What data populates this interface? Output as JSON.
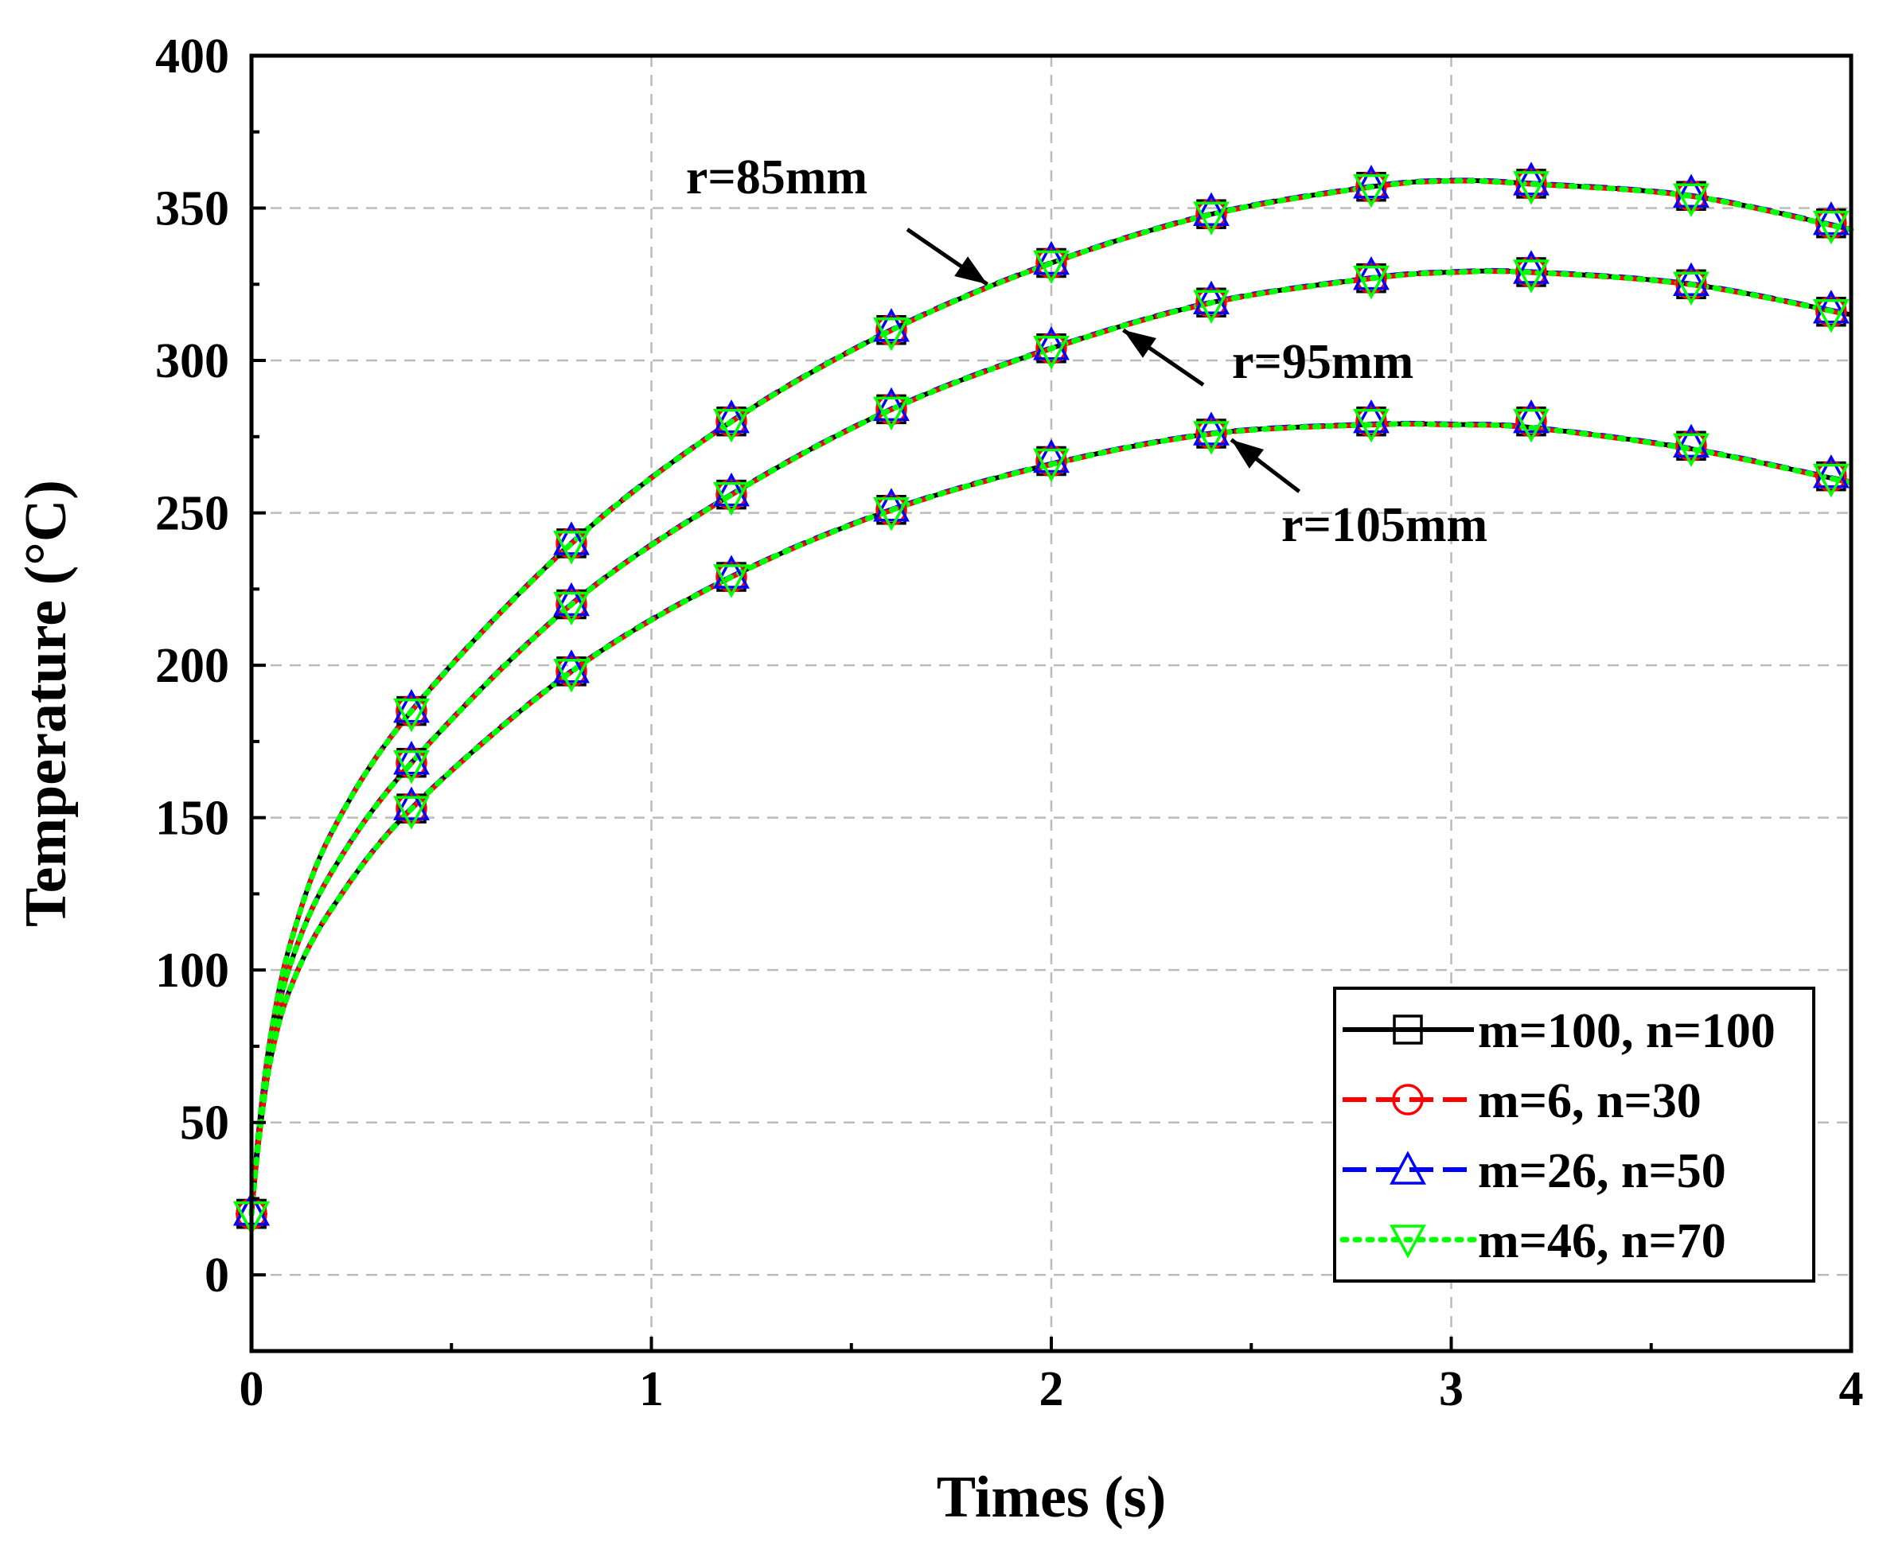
{
  "chart_data": {
    "type": "line",
    "title": "",
    "xlabel": "Times (s)",
    "ylabel": "Temperature (°C)",
    "xlim": [
      0,
      4
    ],
    "ylim": [
      -25,
      400
    ],
    "xticks": [
      "0",
      "1",
      "2",
      "3",
      "4"
    ],
    "yticks": [
      "0",
      "50",
      "100",
      "150",
      "200",
      "250",
      "300",
      "350",
      "400"
    ],
    "grid": true,
    "legend_position": "bottom-right",
    "colors": {
      "black": "#000000",
      "red": "#ff0000",
      "blue": "#0000ff",
      "green": "#00ff00",
      "grid": "#bbbbbb"
    },
    "legend": [
      {
        "label": "m=100, n=100",
        "color": "#000000",
        "dash": "solid",
        "marker": "square"
      },
      {
        "label": "m=6, n=30",
        "color": "#ff0000",
        "dash": "dash",
        "marker": "circle"
      },
      {
        "label": "m=26, n=50",
        "color": "#0000ff",
        "dash": "dash",
        "marker": "triangle-up"
      },
      {
        "label": "m=46, n=70",
        "color": "#00ff00",
        "dash": "dot",
        "marker": "triangle-down"
      }
    ],
    "curves": [
      {
        "name": "r=85mm",
        "x": [
          0,
          0.02,
          0.05,
          0.1,
          0.2,
          0.4,
          0.8,
          1.2,
          1.6,
          2.0,
          2.4,
          2.8,
          3.0,
          3.2,
          3.6,
          4.0
        ],
        "y": [
          20,
          50,
          80,
          110,
          145,
          185,
          240,
          280,
          310,
          332,
          348,
          357,
          359,
          358,
          354,
          343
        ],
        "marker_x": [
          0,
          0.4,
          0.8,
          1.2,
          1.6,
          2.0,
          2.4,
          2.8,
          3.2,
          3.6,
          3.95
        ],
        "marker_y": [
          20,
          185,
          240,
          280,
          310,
          332,
          348,
          357,
          358,
          354,
          345
        ]
      },
      {
        "name": "r=95mm",
        "x": [
          0,
          0.02,
          0.05,
          0.1,
          0.2,
          0.4,
          0.8,
          1.2,
          1.6,
          2.0,
          2.4,
          2.8,
          3.0,
          3.2,
          3.6,
          4.0
        ],
        "y": [
          20,
          48,
          76,
          103,
          132,
          168,
          220,
          256,
          284,
          304,
          319,
          327,
          329,
          329,
          325,
          315
        ],
        "marker_x": [
          0,
          0.4,
          0.8,
          1.2,
          1.6,
          2.0,
          2.4,
          2.8,
          3.2,
          3.6,
          3.95
        ],
        "marker_y": [
          20,
          168,
          220,
          256,
          284,
          304,
          319,
          327,
          329,
          325,
          316
        ]
      },
      {
        "name": "r=105mm",
        "x": [
          0,
          0.02,
          0.05,
          0.1,
          0.2,
          0.4,
          0.8,
          1.2,
          1.6,
          2.0,
          2.4,
          2.8,
          3.0,
          3.2,
          3.6,
          4.0
        ],
        "y": [
          20,
          46,
          72,
          95,
          120,
          153,
          198,
          229,
          251,
          266,
          276,
          279,
          279,
          278,
          271,
          260
        ],
        "marker_x": [
          0,
          0.4,
          0.8,
          1.2,
          1.6,
          2.0,
          2.4,
          2.8,
          3.2,
          3.6,
          3.95
        ],
        "marker_y": [
          20,
          153,
          198,
          229,
          251,
          267,
          276,
          280,
          280,
          272,
          262
        ]
      }
    ],
    "annotations": [
      {
        "text": "r=85mm",
        "tail_x": 1.64,
        "tail_y": 343,
        "head_x": 1.84,
        "head_y": 325
      },
      {
        "text": "r=95mm",
        "tail_x": 2.38,
        "tail_y": 292,
        "head_x": 2.18,
        "head_y": 310
      },
      {
        "text": "r=105mm",
        "tail_x": 2.62,
        "tail_y": 257,
        "head_x": 2.45,
        "head_y": 274
      }
    ]
  }
}
